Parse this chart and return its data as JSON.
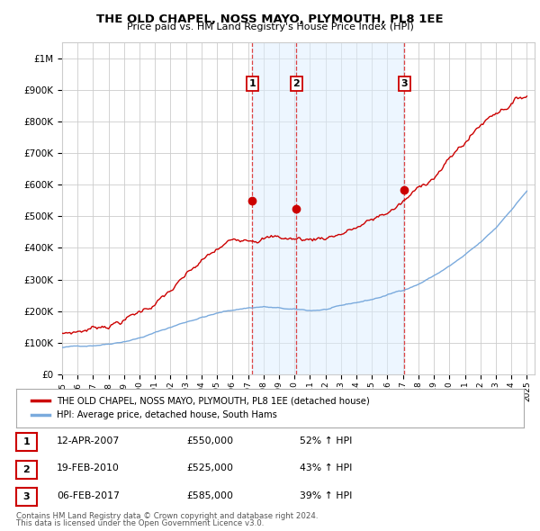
{
  "title": "THE OLD CHAPEL, NOSS MAYO, PLYMOUTH, PL8 1EE",
  "subtitle": "Price paid vs. HM Land Registry's House Price Index (HPI)",
  "legend_line1": "THE OLD CHAPEL, NOSS MAYO, PLYMOUTH, PL8 1EE (detached house)",
  "legend_line2": "HPI: Average price, detached house, South Hams",
  "footer1": "Contains HM Land Registry data © Crown copyright and database right 2024.",
  "footer2": "This data is licensed under the Open Government Licence v3.0.",
  "sales": [
    {
      "num": 1,
      "date": "12-APR-2007",
      "date_x": 2007.28,
      "price": 550000,
      "hpi_pct": "52% ↑ HPI"
    },
    {
      "num": 2,
      "date": "19-FEB-2010",
      "date_x": 2010.13,
      "price": 525000,
      "hpi_pct": "43% ↑ HPI"
    },
    {
      "num": 3,
      "date": "06-FEB-2017",
      "date_x": 2017.1,
      "price": 585000,
      "hpi_pct": "39% ↑ HPI"
    }
  ],
  "red_line_color": "#cc0000",
  "blue_line_color": "#7aaadd",
  "blue_shade_color": "#ddeeff",
  "vline_color": "#dd4444",
  "marker_box_color": "#cc0000",
  "ylim": [
    0,
    1050000
  ],
  "xlim_start": 1995.0,
  "xlim_end": 2025.5,
  "background_color": "#ffffff",
  "plot_bg_color": "#ffffff",
  "grid_color": "#cccccc",
  "hpi_base_pts": [
    85000,
    88000,
    93000,
    100000,
    110000,
    122000,
    138000,
    155000,
    172000,
    188000,
    200000,
    210000,
    218000,
    222000,
    216000,
    210000,
    206000,
    210000,
    218000,
    228000,
    238000,
    252000,
    268000,
    288000,
    315000,
    345000,
    378000,
    415000,
    460000,
    520000,
    580000
  ],
  "red_base_pts": [
    130000,
    138000,
    150000,
    165000,
    183000,
    205000,
    235000,
    270000,
    308000,
    345000,
    375000,
    400000,
    420000,
    435000,
    430000,
    425000,
    422000,
    432000,
    448000,
    465000,
    482000,
    505000,
    535000,
    572000,
    618000,
    668000,
    720000,
    775000,
    820000,
    855000,
    880000
  ]
}
